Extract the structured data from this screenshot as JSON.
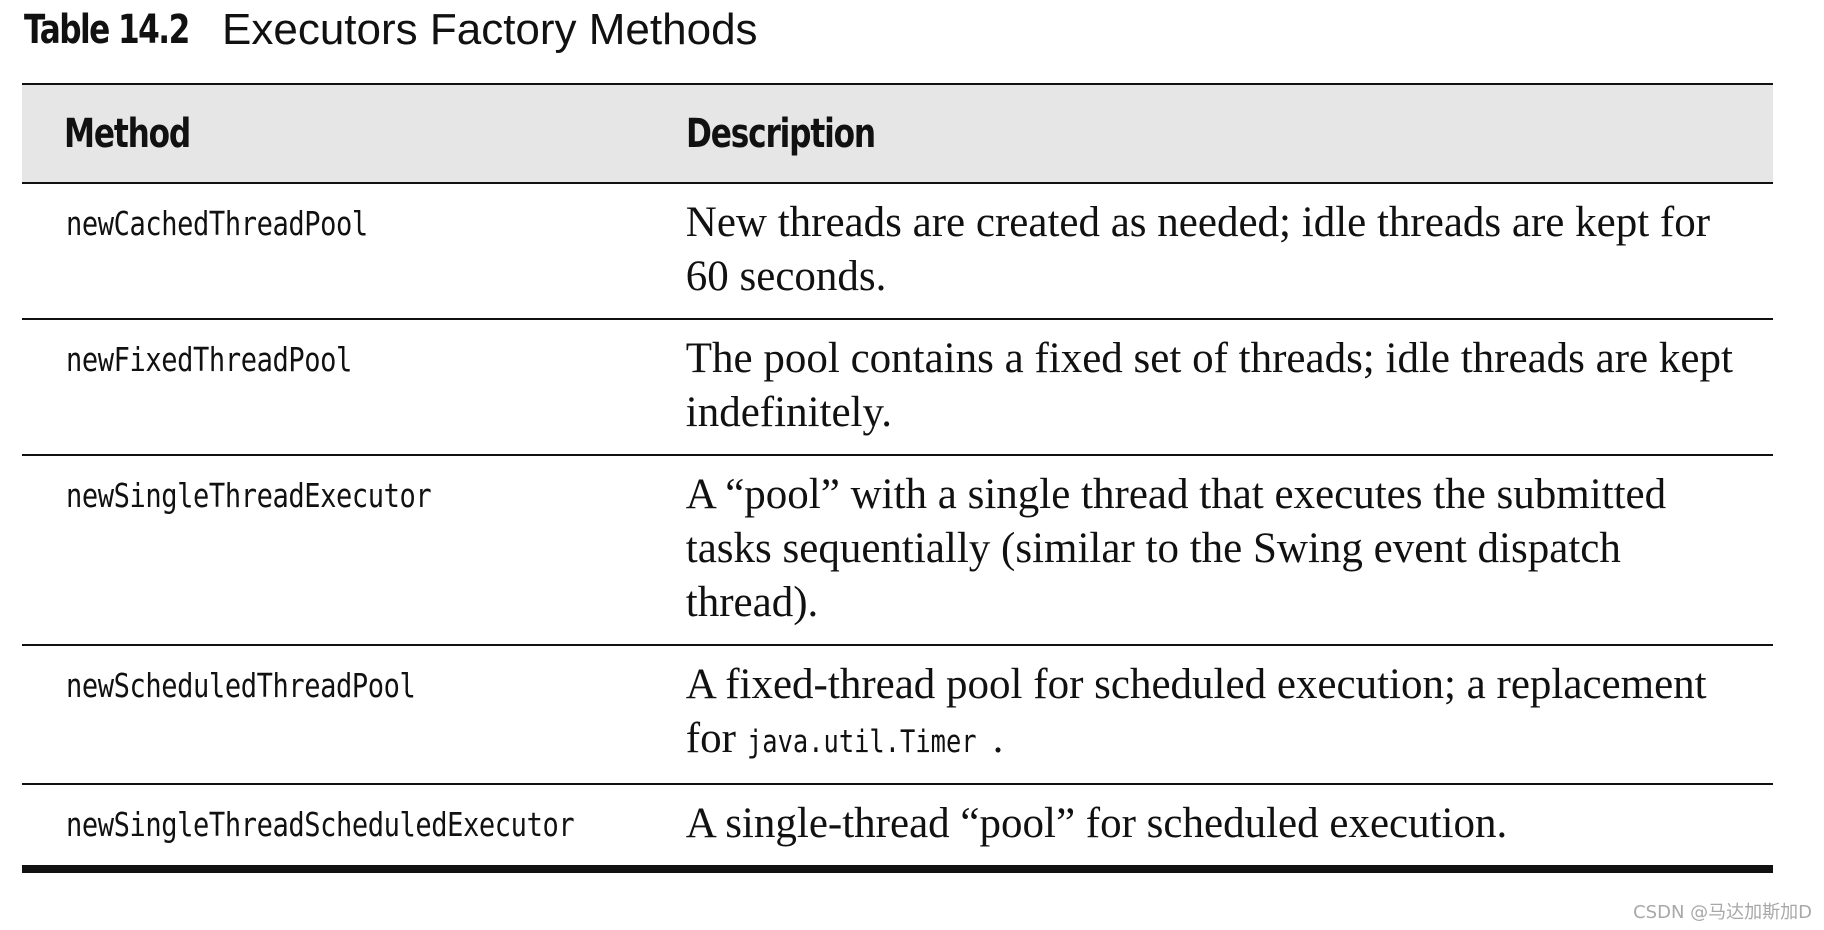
{
  "caption": {
    "label": "Table 14.2",
    "title": "Executors Factory Methods"
  },
  "table": {
    "headers": {
      "method": "Method",
      "description": "Description"
    },
    "rows": [
      {
        "method": "newCachedThreadPool",
        "description": "New threads are created as needed; idle threads are kept for 60 seconds."
      },
      {
        "method": "newFixedThreadPool",
        "description": "The pool contains a fixed set of threads; idle threads are kept indefinitely."
      },
      {
        "method": "newSingleThreadExecutor",
        "description": "A “pool” with a single thread that executes the submitted tasks sequentially (similar to the Swing event dispatch thread)."
      },
      {
        "method": "newScheduledThreadPool",
        "description_prefix": "A fixed-thread pool for scheduled execution; a replacement for ",
        "description_code": "java.util.Timer",
        "description_suffix": "."
      },
      {
        "method": "newSingleThreadScheduledExecutor",
        "description": "A single-thread “pool” for scheduled execution."
      }
    ]
  },
  "watermark": "CSDN @马达加斯加D"
}
